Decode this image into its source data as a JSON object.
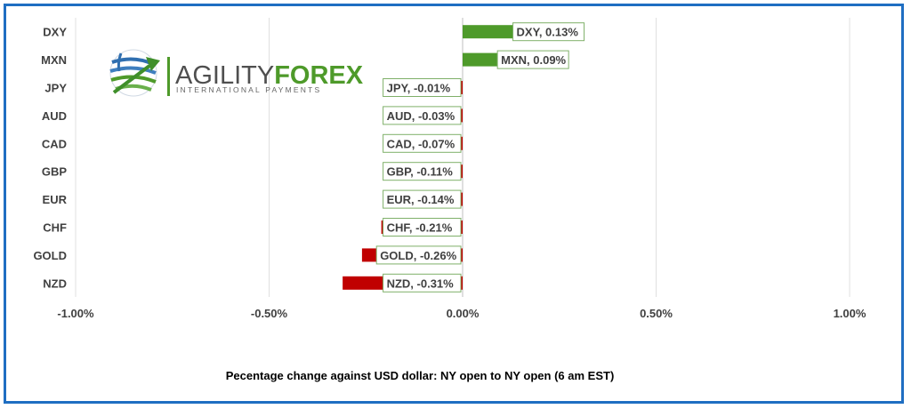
{
  "logo": {
    "word1": "AGILITY",
    "word2": "FOREX",
    "tagline": "INTERNATIONAL PAYMENTS",
    "icon": "globe-arrow-icon",
    "colors": {
      "word1": "#4f4f4f",
      "word2": "#4e9a2a",
      "arrow": "#3f8f2a"
    }
  },
  "caption": "Pecentage change against USD dollar:  NY open to NY open  (6 am EST)",
  "colors": {
    "positive": "#4e9a2a",
    "negative": "#c00000",
    "frame": "#1f6ec2",
    "grid": "#e0e0e0"
  },
  "chart_data": {
    "type": "bar",
    "orientation": "horizontal",
    "categories": [
      "DXY",
      "MXN",
      "JPY",
      "AUD",
      "CAD",
      "GBP",
      "EUR",
      "CHF",
      "GOLD",
      "NZD"
    ],
    "values": [
      0.13,
      0.09,
      -0.01,
      -0.03,
      -0.07,
      -0.11,
      -0.14,
      -0.21,
      -0.26,
      -0.31
    ],
    "data_labels": [
      "DXY, 0.13%",
      "MXN, 0.09%",
      "JPY, -0.01%",
      "AUD, -0.03%",
      "CAD, -0.07%",
      "GBP, -0.11%",
      "EUR, -0.14%",
      "CHF, -0.21%",
      "GOLD, -0.26%",
      "NZD, -0.31%"
    ],
    "xlim": [
      -1.0,
      1.0
    ],
    "xticks": [
      -1.0,
      -0.5,
      0.0,
      0.5,
      1.0
    ],
    "xtick_labels": [
      "-1.00%",
      "-0.50%",
      "0.00%",
      "0.50%",
      "1.00%"
    ],
    "grid": true,
    "title": "",
    "xlabel": "",
    "ylabel": ""
  }
}
